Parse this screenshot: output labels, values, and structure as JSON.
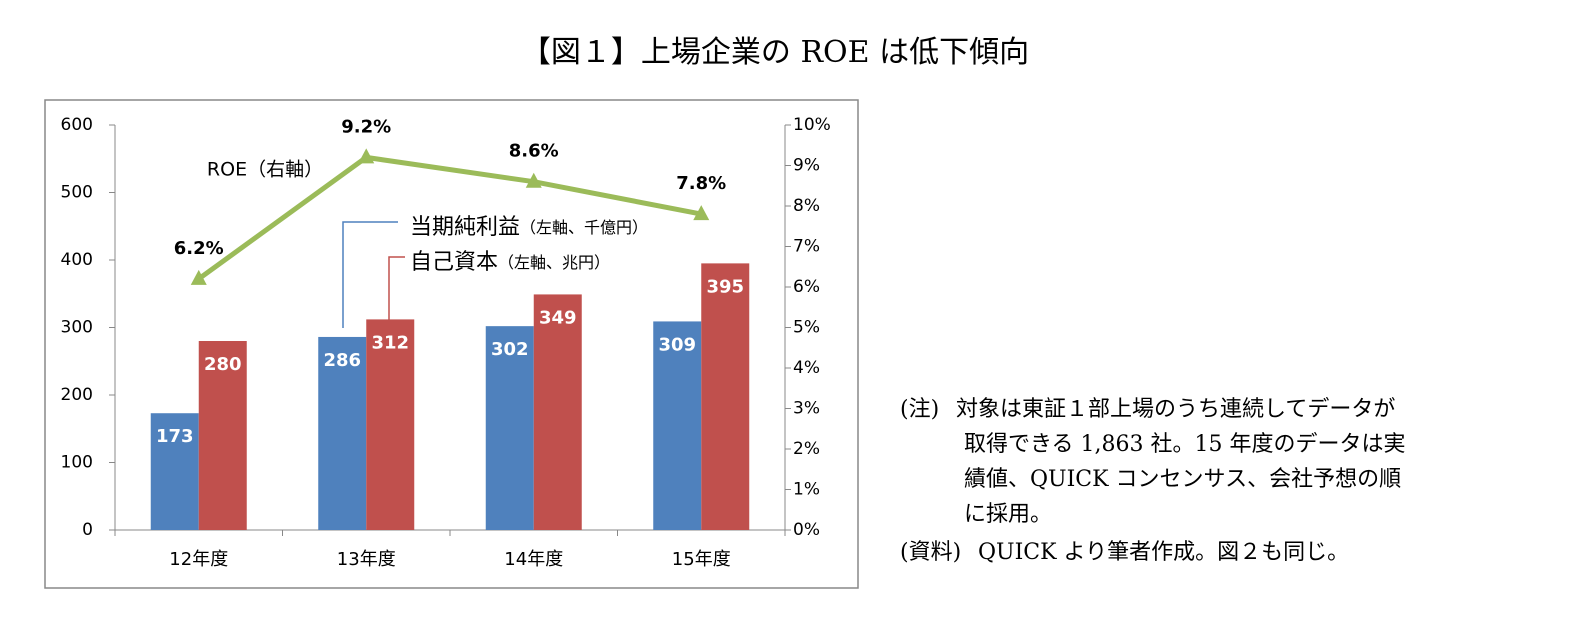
{
  "chart_data": {
    "type": "bar",
    "title": "【図１】上場企業の ROE は低下傾向",
    "categories": [
      "12年度",
      "13年度",
      "14年度",
      "15年度"
    ],
    "series": [
      {
        "name": "当期純利益",
        "note": "（左軸、千億円）",
        "color": "#4f81bd",
        "values": [
          173,
          286,
          302,
          309
        ]
      },
      {
        "name": "自己資本",
        "note": "（左軸、兆円）",
        "color": "#c0504d",
        "values": [
          280,
          312,
          349,
          395
        ]
      },
      {
        "name": "ROE（右軸）",
        "type": "line",
        "axis": "y2",
        "color": "#9bbb59",
        "values": [
          6.2,
          9.2,
          8.6,
          7.8
        ],
        "value_labels": [
          "6.2%",
          "9.2%",
          "8.6%",
          "7.8%"
        ]
      }
    ],
    "ylim": [
      0,
      600
    ],
    "yticks": [
      0,
      100,
      200,
      300,
      400,
      500,
      600
    ],
    "y2lim": [
      0,
      10
    ],
    "y2ticks": [
      {
        "value": 0,
        "label": "0%"
      },
      {
        "value": 1,
        "label": "1%"
      },
      {
        "value": 2,
        "label": "2%"
      },
      {
        "value": 3,
        "label": "3%"
      },
      {
        "value": 4,
        "label": "4%"
      },
      {
        "value": 5,
        "label": "5%"
      },
      {
        "value": 6,
        "label": "6%"
      },
      {
        "value": 7,
        "label": "7%"
      },
      {
        "value": 8,
        "label": "8%"
      },
      {
        "value": 9,
        "label": "9%"
      },
      {
        "value": 10,
        "label": "10%"
      }
    ]
  },
  "notes": [
    {
      "label": "(注)",
      "lines": [
        "対象は東証１部上場のうち連続してデータが",
        "取得できる 1,863 社。15 年度のデータは実",
        "績値、QUICK コンセンサス、会社予想の順",
        "に採用。"
      ]
    },
    {
      "label": "(資料)",
      "lines": [
        "QUICK より筆者作成。図２も同じ。"
      ]
    }
  ]
}
